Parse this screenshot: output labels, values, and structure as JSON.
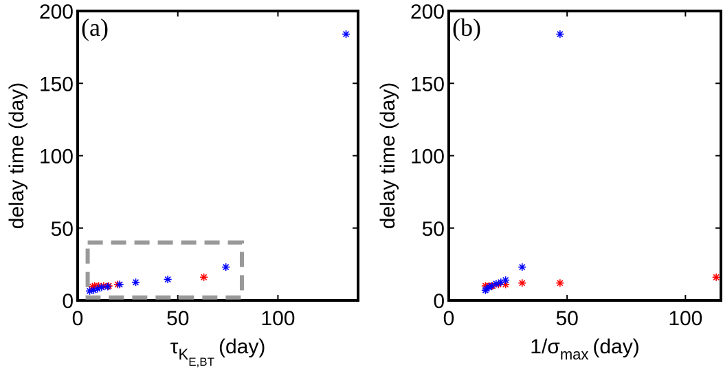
{
  "chart_data": [
    {
      "type": "scatter",
      "panel_label": "(a)",
      "xlabel_main": "τ",
      "xlabel_sub": "K",
      "xlabel_subsub": "E,BT",
      "xlabel_unit": "(day)",
      "ylabel": "delay time (day)",
      "xlim": [
        0,
        140
      ],
      "ylim": [
        0,
        200
      ],
      "xticks": [
        "0",
        "50",
        "100"
      ],
      "yticks": [
        "0",
        "50",
        "100",
        "150",
        "200"
      ],
      "grid": false,
      "marker": "asterisk",
      "series": [
        {
          "color": "#ff0000",
          "points": [
            [
              7.5,
              9.5
            ],
            [
              8.5,
              10
            ],
            [
              10.5,
              10
            ],
            [
              13,
              10
            ],
            [
              15.5,
              10
            ],
            [
              20,
              11
            ],
            [
              63,
              16
            ]
          ]
        },
        {
          "color": "#0000ff",
          "points": [
            [
              6,
              6.5
            ],
            [
              8,
              7
            ],
            [
              10,
              8
            ],
            [
              12,
              9
            ],
            [
              15,
              9.5
            ],
            [
              21,
              11
            ],
            [
              29,
              12.5
            ],
            [
              45,
              14.5
            ],
            [
              74,
              23
            ],
            [
              134,
              184
            ]
          ]
        }
      ],
      "highlight_box": {
        "x0": 5,
        "x1": 82,
        "y0": 2,
        "y1": 40,
        "style": "dashed",
        "color": "#999999"
      }
    },
    {
      "type": "scatter",
      "panel_label": "(b)",
      "xlabel_main": "1/σ",
      "xlabel_sub": "max",
      "xlabel_subsub": "",
      "xlabel_unit": "(day)",
      "ylabel": "delay time (day)",
      "xlim": [
        0,
        115
      ],
      "ylim": [
        0,
        200
      ],
      "xticks": [
        "0",
        "50",
        "100"
      ],
      "yticks": [
        "0",
        "50",
        "100",
        "150",
        "200"
      ],
      "grid": false,
      "marker": "asterisk",
      "series": [
        {
          "color": "#ff0000",
          "points": [
            [
              15.5,
              10
            ],
            [
              17,
              10
            ],
            [
              18.5,
              10
            ],
            [
              21,
              11
            ],
            [
              24,
              11
            ],
            [
              31,
              12
            ],
            [
              47,
              12
            ],
            [
              113,
              16
            ]
          ]
        },
        {
          "color": "#0000ff",
          "points": [
            [
              15.5,
              7
            ],
            [
              16,
              8
            ],
            [
              17,
              9
            ],
            [
              18,
              10
            ],
            [
              20,
              11.5
            ],
            [
              22,
              12.5
            ],
            [
              24,
              14
            ],
            [
              31,
              23
            ],
            [
              47,
              184
            ]
          ]
        }
      ]
    }
  ]
}
